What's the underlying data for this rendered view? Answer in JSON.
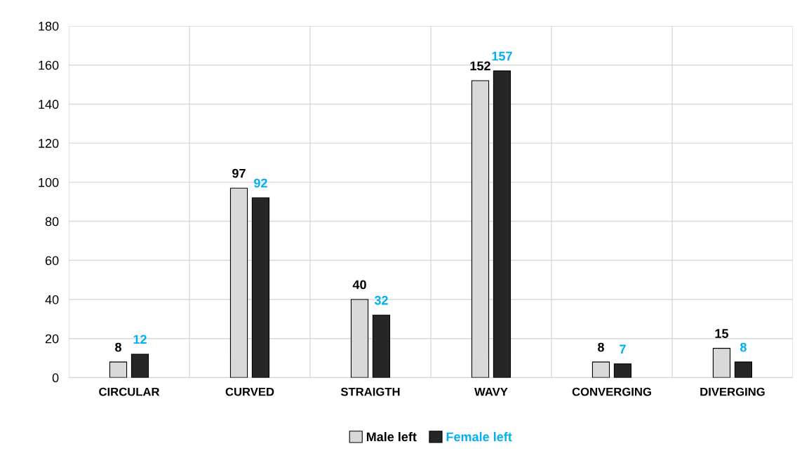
{
  "chart_data": {
    "type": "bar",
    "categories": [
      "CIRCULAR",
      "CURVED",
      "STRAIGTH",
      "WAVY",
      "CONVERGING",
      "DIVERGING"
    ],
    "series": [
      {
        "name": "Male left",
        "color": "#d9d9d9",
        "values": [
          8,
          97,
          40,
          152,
          8,
          15
        ]
      },
      {
        "name": "Female left",
        "color": "#262626",
        "values": [
          12,
          92,
          32,
          157,
          7,
          8
        ]
      }
    ],
    "ylim": [
      0,
      180
    ],
    "yticks": [
      0,
      20,
      40,
      60,
      80,
      100,
      120,
      140,
      160,
      180
    ],
    "grid": true,
    "legend": "bottom",
    "data_labels": true
  }
}
